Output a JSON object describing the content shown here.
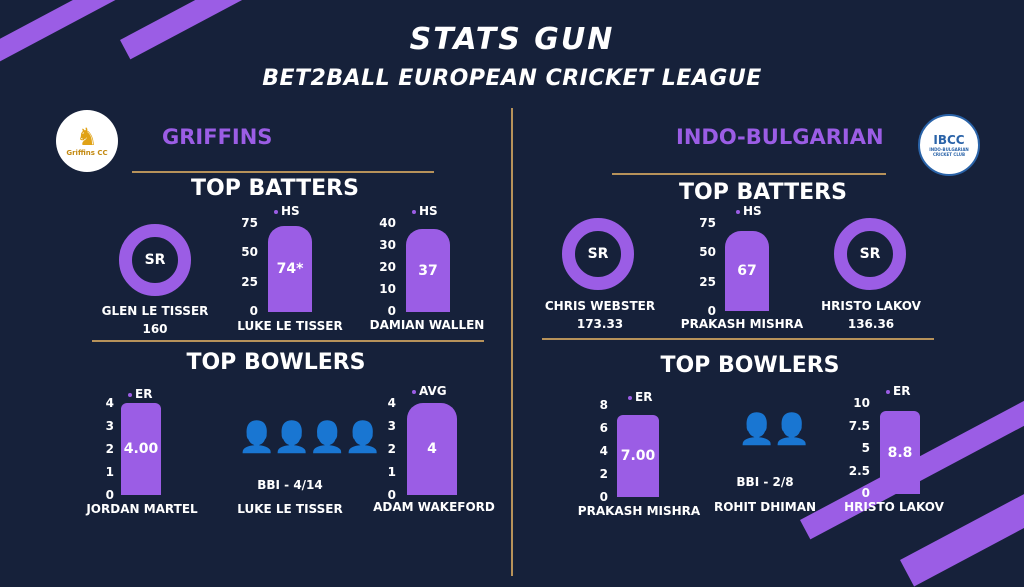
{
  "header": {
    "title": "STATS GUN",
    "subtitle": "BET2BALL EUROPEAN CRICKET LEAGUE"
  },
  "colors": {
    "background": "#16213a",
    "accent": "#9b5de5",
    "divider": "#b7925a"
  },
  "left_team": {
    "name": "GRIFFINS",
    "logo_text": "Griffins CC",
    "top_batters_heading": "TOP BATTERS",
    "top_bowlers_heading": "TOP BOWLERS",
    "batters": {
      "sr_player": {
        "badge": "SR",
        "name": "GLEN LE TISSER",
        "value": "160"
      },
      "hs_player_1": {
        "legend": "HS",
        "value_label": "74*",
        "value": 74,
        "max": 75,
        "ticks": [
          "75",
          "50",
          "25",
          "0"
        ],
        "name": "LUKE LE TISSER"
      },
      "hs_player_2": {
        "legend": "HS",
        "value_label": "37",
        "value": 37,
        "max": 40,
        "ticks": [
          "40",
          "30",
          "20",
          "10",
          "0"
        ],
        "name": "DAMIAN WALLEN"
      }
    },
    "bowlers": {
      "er_player": {
        "legend": "ER",
        "value_label": "4.00",
        "value": 4,
        "max": 4,
        "ticks": [
          "4",
          "3",
          "2",
          "1",
          "0"
        ],
        "name": "JORDAN MARTEL"
      },
      "bbi_player": {
        "bbi": "BBI - 4/14",
        "wickets": 4,
        "name": "LUKE LE TISSER"
      },
      "avg_player": {
        "legend": "AVG",
        "value_label": "4",
        "value": 4,
        "max": 4,
        "ticks": [
          "4",
          "3",
          "2",
          "1",
          "0"
        ],
        "name": "ADAM WAKEFORD"
      }
    }
  },
  "right_team": {
    "name": "INDO-BULGARIAN",
    "logo_text": "IBCC",
    "logo_subtext": "INDO-BULGARIAN CRICKET CLUB",
    "top_batters_heading": "TOP BATTERS",
    "top_bowlers_heading": "TOP BOWLERS",
    "batters": {
      "sr_player_1": {
        "badge": "SR",
        "name": "CHRIS WEBSTER",
        "value": "173.33"
      },
      "hs_player": {
        "legend": "HS",
        "value_label": "67",
        "value": 67,
        "max": 75,
        "ticks": [
          "75",
          "50",
          "25",
          "0"
        ],
        "name": "PRAKASH MISHRA"
      },
      "sr_player_2": {
        "badge": "SR",
        "name": "HRISTO LAKOV",
        "value": "136.36"
      }
    },
    "bowlers": {
      "er_player_1": {
        "legend": "ER",
        "value_label": "7.00",
        "value": 7,
        "max": 8,
        "ticks": [
          "8",
          "6",
          "4",
          "2",
          "0"
        ],
        "name": "PRAKASH MISHRA"
      },
      "bbi_player": {
        "bbi": "BBI - 2/8",
        "wickets": 2,
        "name": "ROHIT DHIMAN"
      },
      "er_player_2": {
        "legend": "ER",
        "value_label": "8.8",
        "value": 8.8,
        "max": 10,
        "ticks": [
          "10",
          "7.5",
          "5",
          "2.5",
          "0"
        ],
        "name": "HRISTO LAKOV"
      }
    }
  }
}
